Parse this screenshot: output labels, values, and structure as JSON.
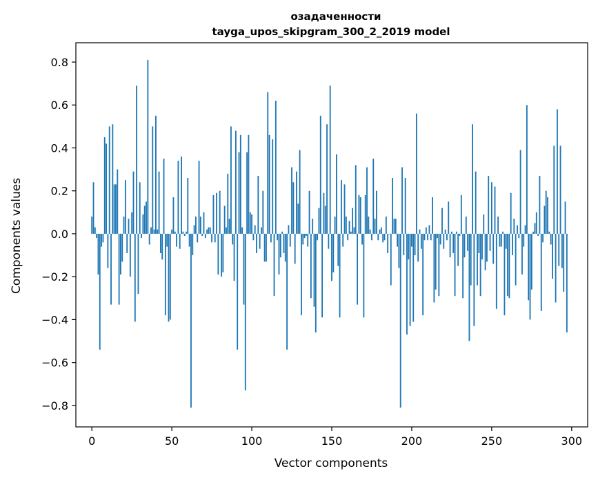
{
  "chart_data": {
    "type": "bar",
    "title": "озадаченности",
    "subtitle": "tayga_upos_skipgram_300_2_2019 model",
    "xlabel": "Vector components",
    "ylabel": "Components values",
    "xlim": [
      -10,
      310
    ],
    "ylim": [
      -0.9,
      0.89
    ],
    "xticks": [
      0,
      50,
      100,
      150,
      200,
      250,
      300
    ],
    "yticks": [
      -0.8,
      -0.6,
      -0.4,
      -0.2,
      0.0,
      0.2,
      0.4,
      0.6,
      0.8
    ],
    "ytick_labels": [
      "−0.8",
      "−0.6",
      "−0.4",
      "−0.2",
      "0.0",
      "0.2",
      "0.4",
      "0.6",
      "0.8"
    ],
    "xtick_labels": [
      "0",
      "50",
      "100",
      "150",
      "200",
      "250",
      "300"
    ],
    "bar_color": "#1f77b4",
    "grid": false,
    "values": [
      0.08,
      0.24,
      0.03,
      -0.02,
      -0.19,
      -0.54,
      -0.06,
      -0.04,
      0.45,
      0.42,
      -0.16,
      0.5,
      -0.33,
      0.51,
      0.23,
      0.23,
      0.3,
      -0.33,
      -0.19,
      -0.13,
      0.08,
      0.25,
      -0.09,
      0.07,
      -0.2,
      0.1,
      0.29,
      -0.41,
      0.69,
      -0.28,
      0.24,
      -0.02,
      0.09,
      0.13,
      0.15,
      0.81,
      -0.05,
      0.03,
      0.5,
      0.02,
      0.55,
      0.02,
      0.29,
      -0.09,
      -0.12,
      0.35,
      -0.38,
      -0.06,
      -0.41,
      -0.4,
      0.02,
      0.17,
      0.01,
      -0.06,
      0.34,
      -0.07,
      0.36,
      0.01,
      -0.01,
      0.01,
      0.26,
      -0.06,
      -0.81,
      -0.1,
      0.04,
      0.08,
      -0.04,
      0.34,
      0.08,
      -0.01,
      0.1,
      -0.02,
      0.02,
      0.03,
      0.03,
      -0.04,
      0.18,
      -0.04,
      0.19,
      -0.19,
      0.2,
      -0.2,
      -0.18,
      0.13,
      0.03,
      0.28,
      0.07,
      0.5,
      -0.05,
      -0.22,
      0.48,
      -0.54,
      0.38,
      0.46,
      0.03,
      -0.33,
      -0.73,
      0.38,
      0.46,
      0.1,
      0.09,
      -0.03,
      0.04,
      -0.09,
      0.27,
      -0.07,
      0.03,
      0.2,
      -0.13,
      -0.13,
      0.66,
      0.46,
      -0.04,
      0.44,
      -0.29,
      0.62,
      -0.03,
      -0.19,
      -0.11,
      0.01,
      -0.09,
      -0.13,
      -0.54,
      0.04,
      -0.06,
      0.31,
      0.24,
      -0.14,
      0.29,
      0.14,
      0.39,
      -0.38,
      -0.05,
      -0.02,
      -0.01,
      -0.06,
      0.2,
      -0.3,
      0.07,
      -0.34,
      -0.46,
      -0.03,
      0.12,
      0.55,
      -0.39,
      0.19,
      0.13,
      0.51,
      -0.07,
      0.69,
      -0.22,
      -0.18,
      0.08,
      0.37,
      -0.15,
      -0.39,
      0.25,
      -0.06,
      0.23,
      0.08,
      -0.03,
      0.06,
      0.01,
      0.12,
      0.03,
      0.32,
      -0.33,
      0.18,
      0.17,
      -0.05,
      -0.39,
      0.18,
      0.31,
      0.08,
      0.02,
      -0.03,
      0.35,
      0.07,
      0.2,
      -0.03,
      0.02,
      0.03,
      -0.04,
      -0.03,
      0.08,
      -0.09,
      0.0,
      -0.24,
      0.26,
      0.07,
      0.07,
      -0.06,
      -0.16,
      -0.81,
      0.31,
      -0.1,
      0.26,
      -0.47,
      -0.12,
      -0.43,
      -0.06,
      -0.41,
      -0.1,
      0.56,
      -0.13,
      0.02,
      -0.07,
      -0.38,
      -0.03,
      0.03,
      -0.03,
      0.04,
      -0.03,
      0.17,
      -0.32,
      -0.26,
      -0.02,
      -0.29,
      -0.05,
      0.12,
      -0.07,
      0.02,
      -0.03,
      0.15,
      -0.11,
      0.01,
      -0.09,
      -0.29,
      0.01,
      -0.15,
      -0.01,
      0.18,
      -0.3,
      -0.11,
      0.08,
      -0.08,
      -0.5,
      -0.24,
      0.51,
      -0.43,
      0.29,
      -0.24,
      -0.09,
      -0.29,
      -0.12,
      0.09,
      -0.17,
      -0.13,
      0.27,
      -0.08,
      0.24,
      -0.14,
      0.22,
      -0.35,
      0.08,
      -0.06,
      -0.06,
      0.01,
      -0.38,
      -0.07,
      -0.29,
      -0.3,
      0.19,
      -0.1,
      0.07,
      -0.24,
      0.04,
      -0.02,
      0.39,
      -0.19,
      -0.06,
      0.04,
      0.6,
      -0.31,
      -0.4,
      -0.26,
      0.01,
      0.05,
      0.1,
      -0.01,
      0.27,
      -0.36,
      -0.04,
      0.13,
      0.2,
      0.17,
      0.01,
      -0.05,
      -0.21,
      0.41,
      -0.32,
      0.58,
      -0.15,
      0.41,
      -0.16,
      -0.27,
      0.15,
      -0.46
    ]
  }
}
